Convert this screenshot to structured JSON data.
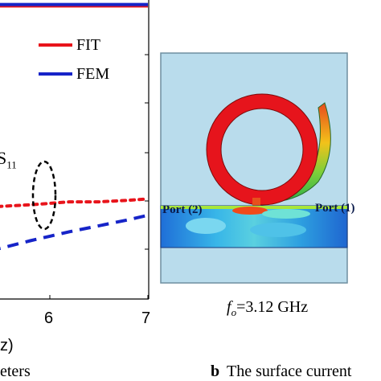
{
  "panel_a": {
    "legend": [
      {
        "label": "FIT",
        "color": "#e8141b"
      },
      {
        "label": "FEM",
        "color": "#1624c8"
      }
    ],
    "param_label_main": "S",
    "param_label_sub": "11",
    "x_ticks": [
      "6",
      "7"
    ],
    "xlabel_fragment": "z)",
    "caption_fragment": "eters"
  },
  "panel_b": {
    "port_left_label": "Port (2)",
    "port_right_label": "Port (1)",
    "freq_label": "f",
    "freq_sub": "o",
    "freq_value": "=3.12 GHz",
    "caption_letter": "b",
    "caption_text": "The surface current"
  },
  "chart_data": {
    "type": "line",
    "title": "",
    "xlabel": "z)",
    "ylabel": "",
    "x_visible_range": [
      5.2,
      7
    ],
    "series": [
      {
        "name": "FIT",
        "color": "#e8141b",
        "style": "solid",
        "x": [
          5.2,
          7
        ],
        "y": [
          0.98,
          0.98
        ]
      },
      {
        "name": "FEM",
        "color": "#1624c8",
        "style": "solid",
        "x": [
          5.2,
          7
        ],
        "y": [
          0.985,
          0.985
        ]
      },
      {
        "name": "FIT",
        "color": "#e8141b",
        "style": "dotted",
        "x": [
          5.2,
          5.5,
          5.8,
          6.0,
          6.2,
          6.5,
          6.8,
          7.0
        ],
        "y": [
          0.31,
          0.31,
          0.315,
          0.32,
          0.325,
          0.325,
          0.33,
          0.335
        ]
      },
      {
        "name": "FEM",
        "color": "#1624c8",
        "style": "dashed",
        "x": [
          5.2,
          5.5,
          5.8,
          6.0,
          6.2,
          6.5,
          6.8,
          7.0
        ],
        "y": [
          0.15,
          0.17,
          0.195,
          0.21,
          0.225,
          0.245,
          0.265,
          0.28
        ]
      }
    ],
    "annotations": [
      "S11 ellipse marker near x=6"
    ]
  }
}
